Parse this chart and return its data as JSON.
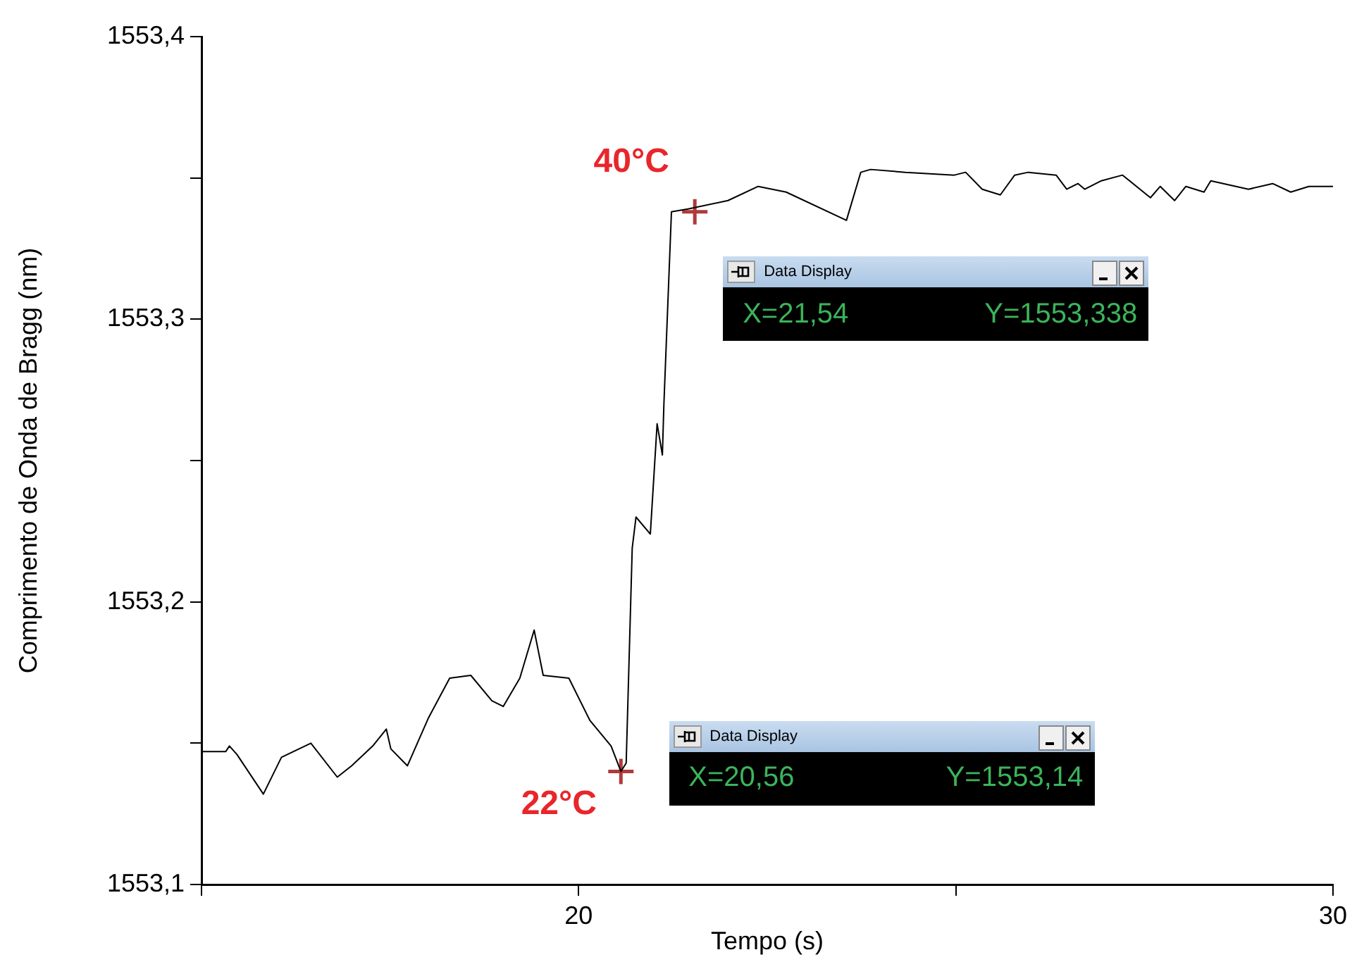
{
  "chart_data": {
    "type": "line",
    "xlabel": "Tempo (s)",
    "ylabel": "Comprimento de Onda de Bragg (nm)",
    "xlim": [
      15,
      30
    ],
    "ylim": [
      1553.1,
      1553.4
    ],
    "xticks": [
      {
        "value": 15,
        "label": null
      },
      20,
      {
        "value": 25,
        "label": null
      },
      30
    ],
    "yticks": [
      {
        "value": 1553.1,
        "label": "1553,1"
      },
      {
        "value": 1553.15,
        "label": null
      },
      {
        "value": 1553.2,
        "label": "1553,2"
      },
      {
        "value": 1553.25,
        "label": null
      },
      {
        "value": 1553.3,
        "label": "1553,3"
      },
      {
        "value": 1553.35,
        "label": null
      },
      {
        "value": 1553.4,
        "label": "1553,4"
      }
    ],
    "grid": false,
    "legend": false,
    "series": [
      {
        "color": "#000000",
        "marker": "none",
        "x": [
          15,
          15.32,
          15.37,
          15.47,
          15.82,
          16.06,
          16.45,
          16.8,
          16.99,
          17.27,
          17.45,
          17.51,
          17.73,
          18.01,
          18.29,
          18.57,
          18.85,
          19,
          19.22,
          19.41,
          19.53,
          19.87,
          20.15,
          20.43,
          20.56,
          20.63,
          20.71,
          20.76,
          20.95,
          21.04,
          21.11,
          21.13,
          21.23,
          21.45,
          21.98,
          22.38,
          22.75,
          23.55,
          23.74,
          23.87,
          24.33,
          24.98,
          25.13,
          25.35,
          25.59,
          25.78,
          25.96,
          26.33,
          26.47,
          26.62,
          26.71,
          26.93,
          27.21,
          27.58,
          27.71,
          27.9,
          28.05,
          28.29,
          28.38,
          28.88,
          29.2,
          29.44,
          29.68,
          30
        ],
        "values": [
          1553.147,
          1553.147,
          1553.149,
          1553.146,
          1553.132,
          1553.145,
          1553.15,
          1553.138,
          1553.142,
          1553.149,
          1553.155,
          1553.148,
          1553.142,
          1553.159,
          1553.173,
          1553.174,
          1553.165,
          1553.163,
          1553.173,
          1553.19,
          1553.174,
          1553.173,
          1553.158,
          1553.149,
          1553.14,
          1553.143,
          1553.219,
          1553.23,
          1553.224,
          1553.263,
          1553.252,
          1553.27,
          1553.338,
          1553.339,
          1553.342,
          1553.347,
          1553.345,
          1553.335,
          1553.352,
          1553.353,
          1553.352,
          1553.351,
          1553.352,
          1553.346,
          1553.344,
          1553.351,
          1553.352,
          1553.351,
          1553.346,
          1553.348,
          1553.346,
          1553.349,
          1553.351,
          1553.343,
          1553.347,
          1553.342,
          1553.347,
          1553.345,
          1553.349,
          1553.346,
          1553.348,
          1553.345,
          1553.347,
          1553.347
        ]
      },
      {
        "type": "scatter",
        "color": "#b03a3a",
        "marker": "cross",
        "x": [
          20.56,
          21.54
        ],
        "values": [
          1553.14,
          1553.338
        ]
      }
    ],
    "annotations": [
      {
        "text": "40°C",
        "x": 21.54,
        "y": 1553.338
      },
      {
        "text": "22°C",
        "x": 20.56,
        "y": 1553.14
      },
      "Data Display",
      "X=21,54",
      "Y=1553,338",
      "Data Display",
      "X=20,56",
      "Y=1553,14"
    ]
  }
}
